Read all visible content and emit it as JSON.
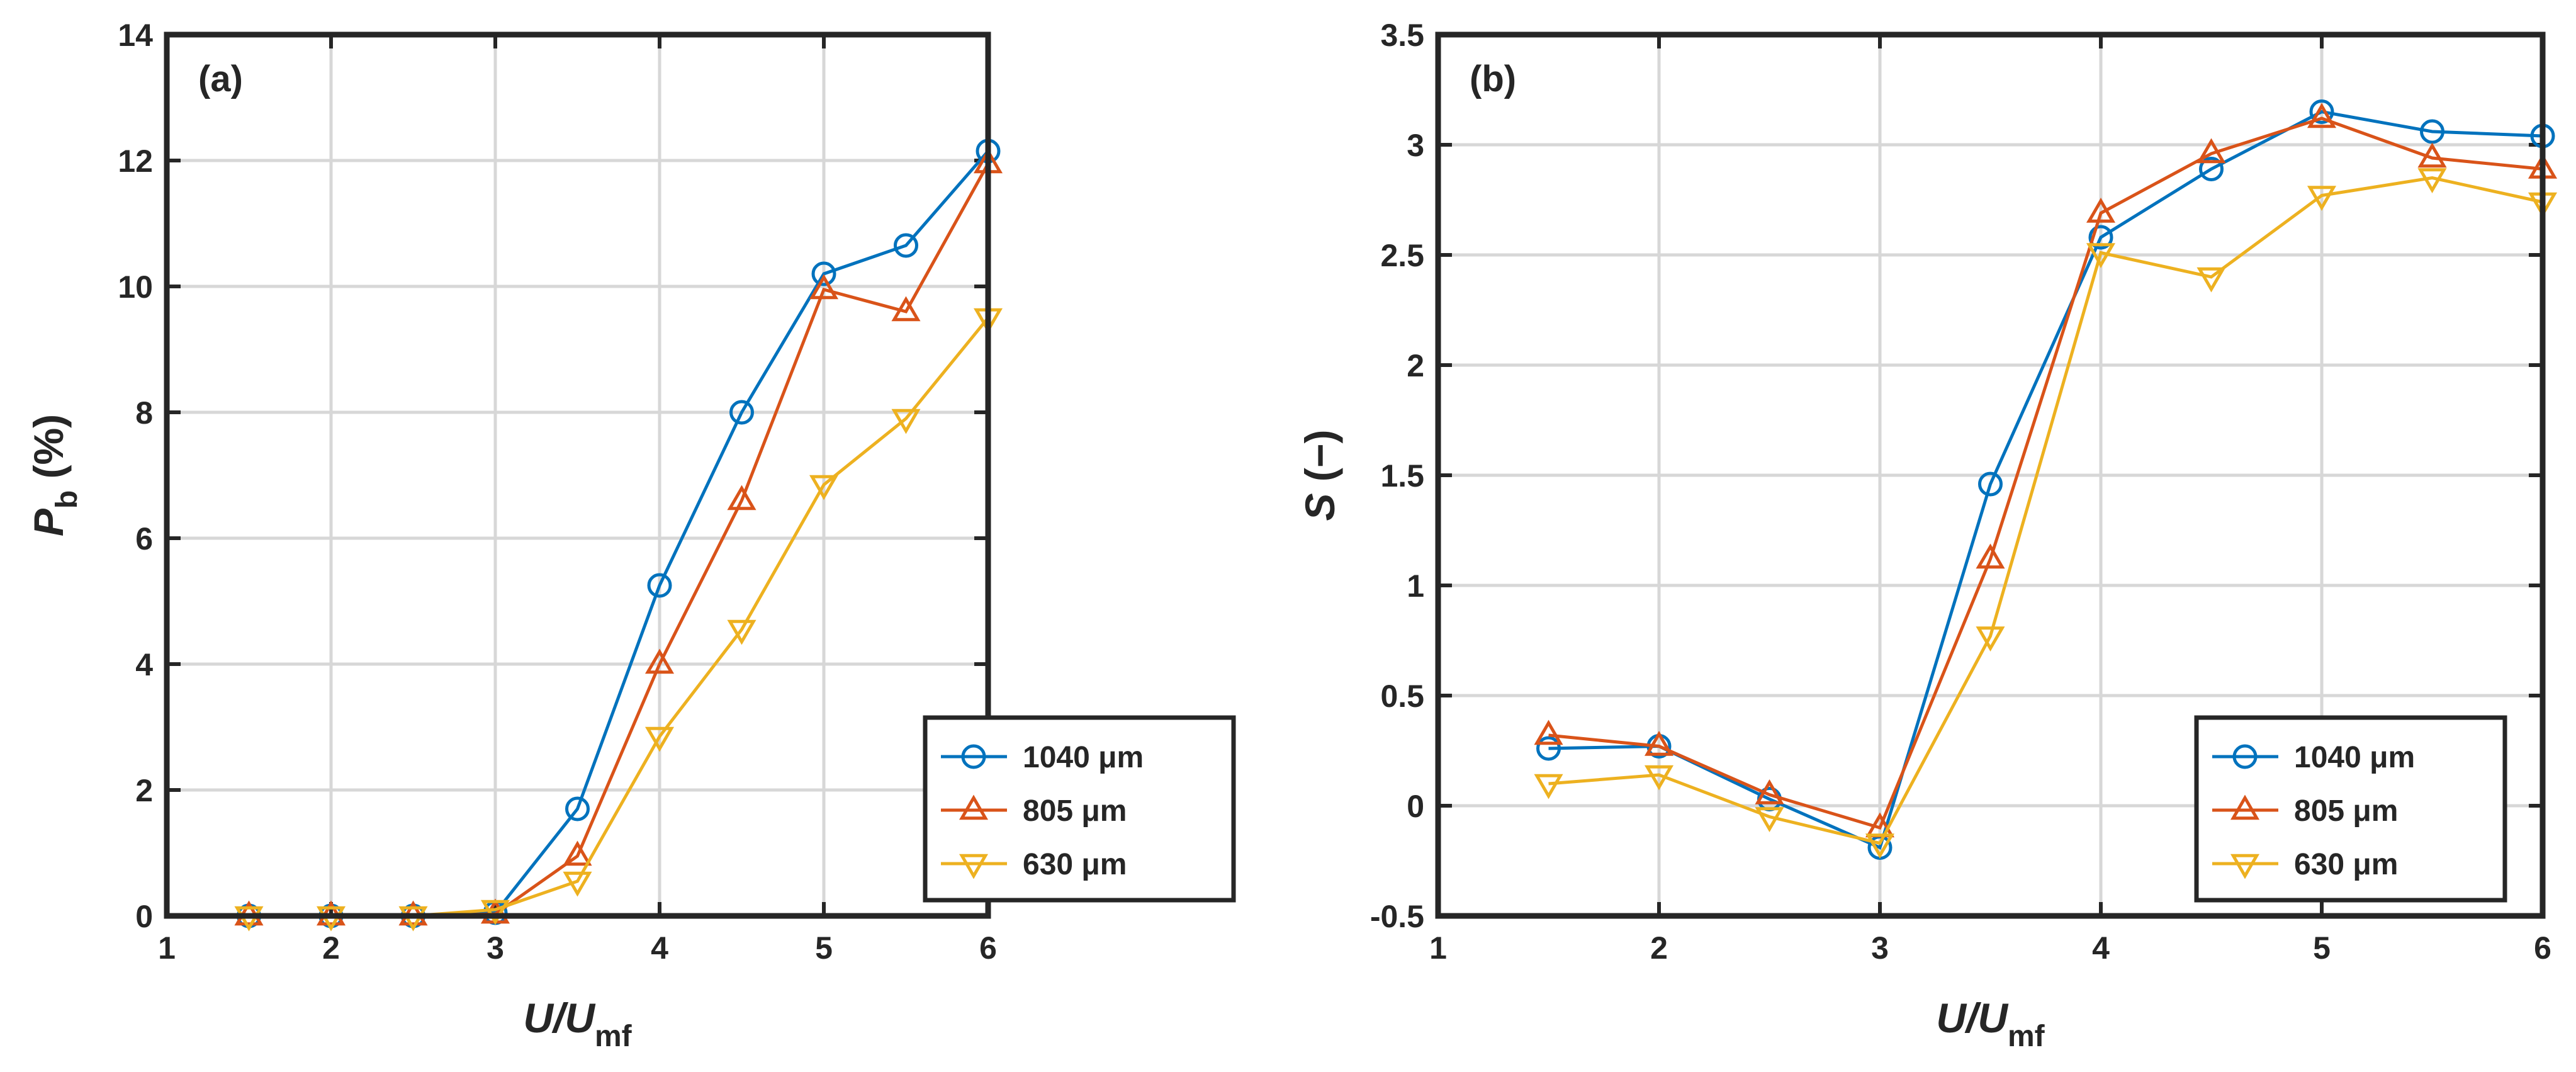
{
  "colors": {
    "s1040": "#0072BD",
    "s805": "#D95319",
    "s630": "#EDB120",
    "axis": "#262626",
    "grid": "#d7d7d7"
  },
  "chart_data": [
    {
      "type": "line",
      "panel_label": "(a)",
      "xlabel": "U/U",
      "xlabel_sub": "mf",
      "ylabel_main": "P",
      "ylabel_sub": "b",
      "ylabel_unit": " (%)",
      "xlim": [
        1,
        6
      ],
      "ylim": [
        0,
        14
      ],
      "xticks": [
        1,
        2,
        3,
        4,
        5,
        6
      ],
      "yticks": [
        0,
        2,
        4,
        6,
        8,
        10,
        12,
        14
      ],
      "xtick_labels": [
        "1",
        "2",
        "3",
        "4",
        "5",
        "6"
      ],
      "ytick_labels": [
        "0",
        "2",
        "4",
        "6",
        "8",
        "10",
        "12",
        "14"
      ],
      "grid": true,
      "legend_position": "bottom-right",
      "x": [
        1.5,
        2,
        2.5,
        3,
        3.5,
        4,
        4.5,
        5,
        5.5,
        6
      ],
      "series": [
        {
          "name": "1040 μm",
          "marker": "circle",
          "color_key": "s1040",
          "values": [
            0,
            0,
            0,
            0.05,
            1.7,
            5.25,
            8.0,
            10.2,
            10.65,
            12.15
          ]
        },
        {
          "name": "805 μm",
          "marker": "triangle-up",
          "color_key": "s805",
          "values": [
            0,
            0,
            0,
            0.03,
            0.95,
            4.0,
            6.6,
            9.95,
            9.6,
            11.95
          ]
        },
        {
          "name": "630 μm",
          "marker": "triangle-down",
          "color_key": "s630",
          "values": [
            0,
            0,
            0,
            0.1,
            0.55,
            2.85,
            4.55,
            6.85,
            7.9,
            9.5
          ]
        }
      ]
    },
    {
      "type": "line",
      "panel_label": "(b)",
      "xlabel": "U/U",
      "xlabel_sub": "mf",
      "ylabel_main": "S",
      "ylabel_sub": "",
      "ylabel_unit": " (−)",
      "xlim": [
        1,
        6
      ],
      "ylim": [
        -0.5,
        3.5
      ],
      "xticks": [
        1,
        2,
        3,
        4,
        5,
        6
      ],
      "yticks": [
        -0.5,
        0,
        0.5,
        1,
        1.5,
        2,
        2.5,
        3,
        3.5
      ],
      "xtick_labels": [
        "1",
        "2",
        "3",
        "4",
        "5",
        "6"
      ],
      "ytick_labels": [
        "-0.5",
        "0",
        "0.5",
        "1",
        "1.5",
        "2",
        "2.5",
        "3",
        "3.5"
      ],
      "grid": true,
      "legend_position": "bottom-right",
      "x": [
        1.5,
        2,
        2.5,
        3,
        3.5,
        4,
        4.5,
        5,
        5.5,
        6
      ],
      "series": [
        {
          "name": "1040 μm",
          "marker": "circle",
          "color_key": "s1040",
          "values": [
            0.26,
            0.27,
            0.03,
            -0.19,
            1.46,
            2.58,
            2.89,
            3.15,
            3.06,
            3.04
          ]
        },
        {
          "name": "805 μm",
          "marker": "triangle-up",
          "color_key": "s805",
          "values": [
            0.32,
            0.27,
            0.05,
            -0.1,
            1.12,
            2.69,
            2.96,
            3.12,
            2.94,
            2.89
          ]
        },
        {
          "name": "630 μm",
          "marker": "triangle-down",
          "color_key": "s630",
          "values": [
            0.1,
            0.14,
            -0.05,
            -0.17,
            0.77,
            2.51,
            2.4,
            2.77,
            2.85,
            2.74
          ]
        }
      ]
    }
  ]
}
